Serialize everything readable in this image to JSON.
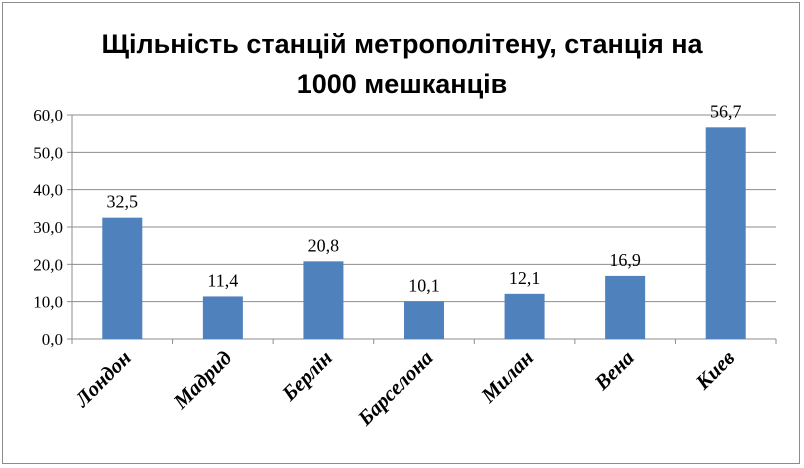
{
  "chart_data": {
    "type": "bar",
    "title_lines": [
      "Щільність станцій метрополітену, станція на",
      "1000 мешканців"
    ],
    "categories": [
      "Лондон",
      "Мадрид",
      "Берлін",
      "Барселона",
      "Милан",
      "Вена",
      "Киев"
    ],
    "values": [
      32.5,
      11.4,
      20.8,
      10.1,
      12.1,
      16.9,
      56.7
    ],
    "data_labels": [
      "32,5",
      "11,4",
      "20,8",
      "10,1",
      "12,1",
      "16,9",
      "56,7"
    ],
    "y_ticks": [
      "0,0",
      "10,0",
      "20,0",
      "30,0",
      "40,0",
      "50,0",
      "60,0"
    ],
    "ylim": [
      0,
      60
    ],
    "bar_color": "#4f81bd",
    "grid": true,
    "legend": "none"
  }
}
